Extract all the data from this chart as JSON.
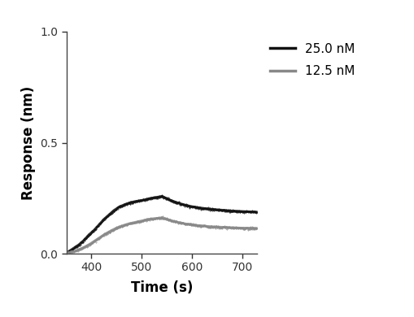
{
  "title": "",
  "xlabel": "Time (s)",
  "ylabel": "Response (nm)",
  "xlim": [
    350,
    730
  ],
  "ylim": [
    0.0,
    1.0
  ],
  "yticks": [
    0.0,
    0.5,
    1.0
  ],
  "xticks": [
    400,
    500,
    600,
    700
  ],
  "background_color": "#ffffff",
  "series": [
    {
      "label": "25.0 nM",
      "color": "#111111",
      "linewidth": 2.2,
      "association_x": [
        355,
        365,
        375,
        385,
        395,
        405,
        415,
        425,
        435,
        445,
        455,
        465,
        475,
        485,
        495,
        505,
        515,
        525,
        535,
        540
      ],
      "association_y": [
        0.01,
        0.025,
        0.04,
        0.06,
        0.085,
        0.105,
        0.13,
        0.155,
        0.175,
        0.195,
        0.21,
        0.22,
        0.228,
        0.234,
        0.238,
        0.242,
        0.248,
        0.252,
        0.256,
        0.258
      ],
      "dissociation_x": [
        540,
        550,
        560,
        570,
        580,
        590,
        600,
        610,
        620,
        630,
        640,
        650,
        660,
        670,
        680,
        690,
        700,
        710,
        720,
        730
      ],
      "dissociation_y": [
        0.258,
        0.248,
        0.238,
        0.23,
        0.223,
        0.217,
        0.212,
        0.208,
        0.205,
        0.202,
        0.2,
        0.198,
        0.196,
        0.194,
        0.192,
        0.191,
        0.19,
        0.189,
        0.188,
        0.187
      ]
    },
    {
      "label": "12.5 nM",
      "color": "#888888",
      "linewidth": 2.2,
      "association_x": [
        355,
        365,
        375,
        385,
        395,
        405,
        415,
        425,
        435,
        445,
        455,
        465,
        475,
        485,
        495,
        505,
        515,
        525,
        535,
        540
      ],
      "association_y": [
        0.005,
        0.01,
        0.018,
        0.028,
        0.04,
        0.055,
        0.07,
        0.085,
        0.098,
        0.11,
        0.12,
        0.128,
        0.135,
        0.14,
        0.145,
        0.15,
        0.155,
        0.158,
        0.16,
        0.162
      ],
      "dissociation_x": [
        540,
        550,
        560,
        570,
        580,
        590,
        600,
        610,
        620,
        630,
        640,
        650,
        660,
        670,
        680,
        690,
        700,
        710,
        720,
        730
      ],
      "dissociation_y": [
        0.162,
        0.155,
        0.148,
        0.142,
        0.137,
        0.133,
        0.13,
        0.127,
        0.125,
        0.123,
        0.121,
        0.12,
        0.119,
        0.118,
        0.117,
        0.116,
        0.115,
        0.115,
        0.114,
        0.114
      ]
    }
  ],
  "scatter_noise": 0.0025,
  "legend_fontsize": 11,
  "axis_fontsize": 12,
  "tick_fontsize": 10
}
